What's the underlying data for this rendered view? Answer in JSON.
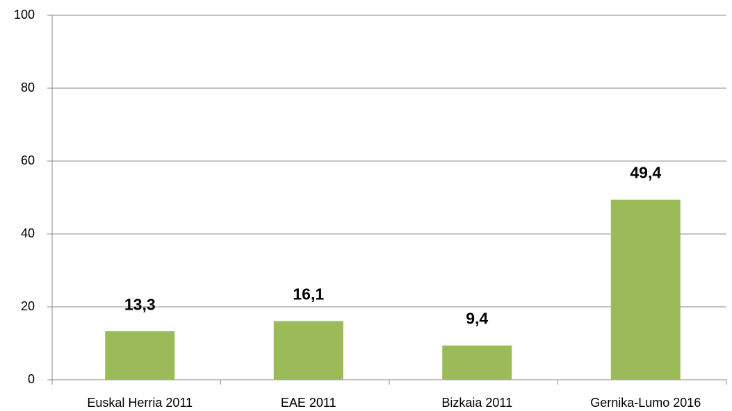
{
  "chart_data": {
    "type": "bar",
    "categories": [
      "Euskal Herria 2011",
      "EAE 2011",
      "Bizkaia 2011",
      "Gernika-Lumo 2016"
    ],
    "values": [
      13.3,
      16.1,
      9.4,
      49.4
    ],
    "value_labels": [
      "13,3",
      "16,1",
      "9,4",
      "49,4"
    ],
    "color": "#9bbb59",
    "ylim": [
      0,
      100
    ],
    "yticks": [
      0,
      20,
      40,
      60,
      80,
      100
    ],
    "grid": true
  }
}
